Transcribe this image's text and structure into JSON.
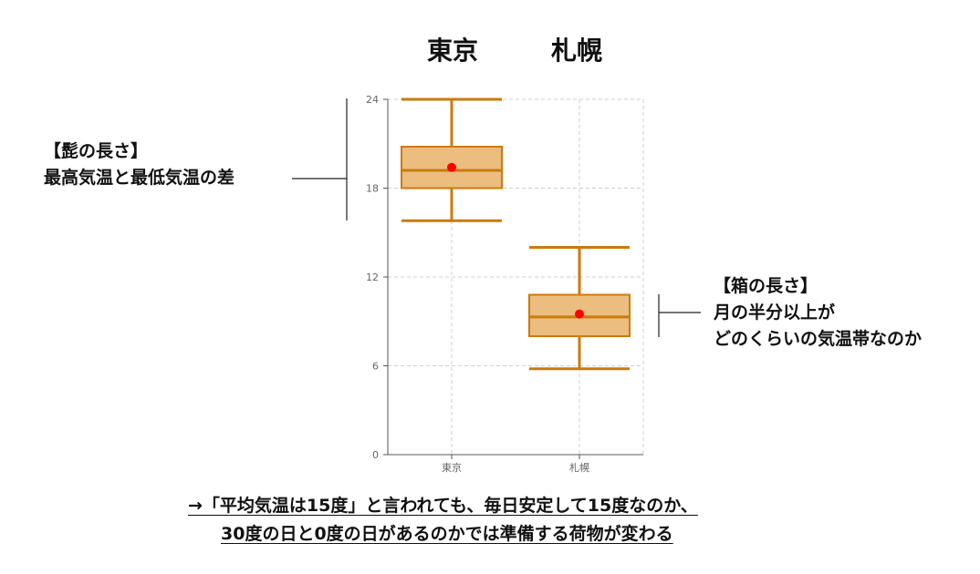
{
  "header": {
    "city_labels": [
      "東京",
      "札幌"
    ]
  },
  "annotations": {
    "whisker_title": "【髭の長さ】",
    "whisker_body": "最高気温と最低気温の差",
    "box_title": "【箱の長さ】",
    "box_body_1": "月の半分以上が",
    "box_body_2": "どのくらいの気温帯なのか"
  },
  "conclusion": {
    "line1": "→「平均気温は15度」と言われても、毎日安定して15度なのか、",
    "line2": "30度の日と0度の日があるのかでは準備する荷物が変わる"
  },
  "colors": {
    "box_fill": "#ebbd7f",
    "box_stroke": "#cc7a0a",
    "mean_marker": "#ff0000",
    "grid": "#cfcfcf",
    "axis": "#555555"
  },
  "chart_data": {
    "type": "box",
    "categories": [
      "東京",
      "札幌"
    ],
    "ylim": [
      0,
      24
    ],
    "yticks": [
      0,
      6,
      12,
      18,
      24
    ],
    "xlabel": "",
    "ylabel": "",
    "grid": true,
    "boxes": [
      {
        "category": "東京",
        "min": 15.8,
        "q1": 18.0,
        "median": 19.2,
        "q3": 20.8,
        "max": 24.0,
        "mean": 19.4
      },
      {
        "category": "札幌",
        "min": 5.8,
        "q1": 8.0,
        "median": 9.3,
        "q3": 10.8,
        "max": 14.0,
        "mean": 9.5
      }
    ]
  }
}
